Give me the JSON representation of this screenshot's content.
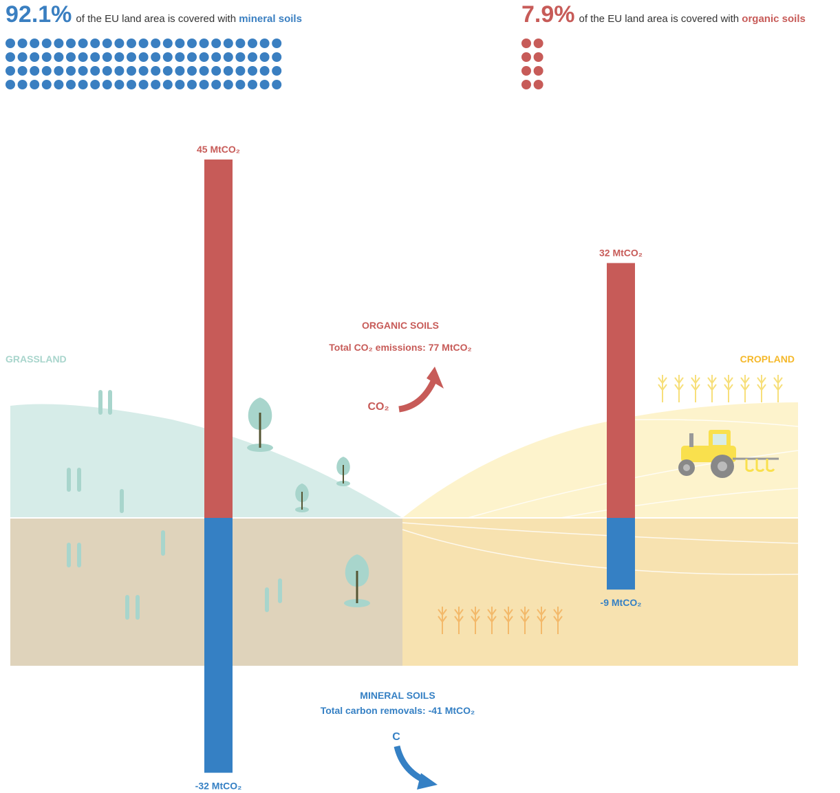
{
  "header": {
    "mineral": {
      "percent": "92.1%",
      "text": "of the EU land area is covered with",
      "highlight": "mineral soils"
    },
    "organic": {
      "percent": "7.9%",
      "text": "of  the EU land area is covered with",
      "highlight": "organic soils"
    }
  },
  "chart_data": {
    "type": "bar",
    "categories": [
      "GRASSLAND",
      "CROPLAND"
    ],
    "series": [
      {
        "name": "ORGANIC SOILS",
        "color": "#c75b58",
        "values": [
          45,
          32
        ],
        "value_labels": [
          "45 MtCO₂",
          "32 MtCO₂"
        ]
      },
      {
        "name": "MINERAL SOILS",
        "color": "#3580c4",
        "values": [
          -32,
          -9
        ],
        "value_labels": [
          "-32 MtCO₂",
          "-9 MtCO₂"
        ]
      }
    ],
    "annotations": {
      "organic_total": "Total CO₂ emissions: 77 MtCO₂",
      "mineral_total": "Total carbon removals: -41 MtCO₂",
      "co2": "CO₂",
      "c": "C"
    }
  }
}
